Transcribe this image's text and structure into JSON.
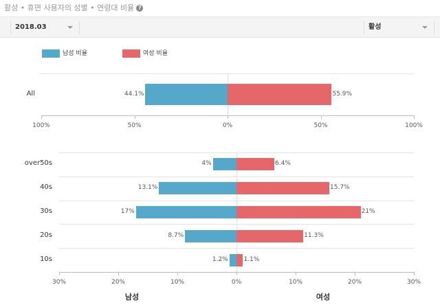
{
  "header": {
    "title": "활성 • 휴면 사용자의 성별 • 연령대 비율",
    "help_icon": "?"
  },
  "filters": {
    "period": {
      "value": "2018.03"
    },
    "status": {
      "value": "활성"
    }
  },
  "legend": [
    {
      "label": "남성 비율",
      "color": "#55a8c9"
    },
    {
      "label": "여성 비율",
      "color": "#e5676a"
    }
  ],
  "colors": {
    "male": "#55a8c9",
    "female": "#e5676a"
  },
  "chart_data": [
    {
      "type": "bar",
      "orientation": "horizontal-diverging",
      "title": "",
      "categories": [
        "All"
      ],
      "series": [
        {
          "name": "남성 비율",
          "values": [
            44.1
          ],
          "labels": [
            "44.1%"
          ]
        },
        {
          "name": "여성 비율",
          "values": [
            55.9
          ],
          "labels": [
            "55.9%"
          ]
        }
      ],
      "xlim": [
        -100,
        100
      ],
      "tick_labels": [
        "100%",
        "50%",
        "0%",
        "50%",
        "100%"
      ],
      "xlabel": "",
      "ylabel": "",
      "legend_position": "top-left"
    },
    {
      "type": "bar",
      "orientation": "horizontal-diverging",
      "title": "",
      "categories": [
        "over50s",
        "40s",
        "30s",
        "20s",
        "10s"
      ],
      "series": [
        {
          "name": "남성",
          "values": [
            4,
            13.1,
            17,
            8.7,
            1.2
          ],
          "labels": [
            "4%",
            "13.1%",
            "17%",
            "8.7%",
            "1.2%"
          ]
        },
        {
          "name": "여성",
          "values": [
            6.4,
            15.7,
            21,
            11.3,
            1.1
          ],
          "labels": [
            "6.4%",
            "15.7%",
            "21%",
            "11.3%",
            "1.1%"
          ]
        }
      ],
      "xlim": [
        -30,
        30
      ],
      "tick_labels": [
        "30%",
        "20%",
        "10%",
        "0%",
        "10%",
        "20%",
        "30%"
      ],
      "xlabel_left": "남성",
      "xlabel_right": "여성",
      "grid": true
    }
  ]
}
